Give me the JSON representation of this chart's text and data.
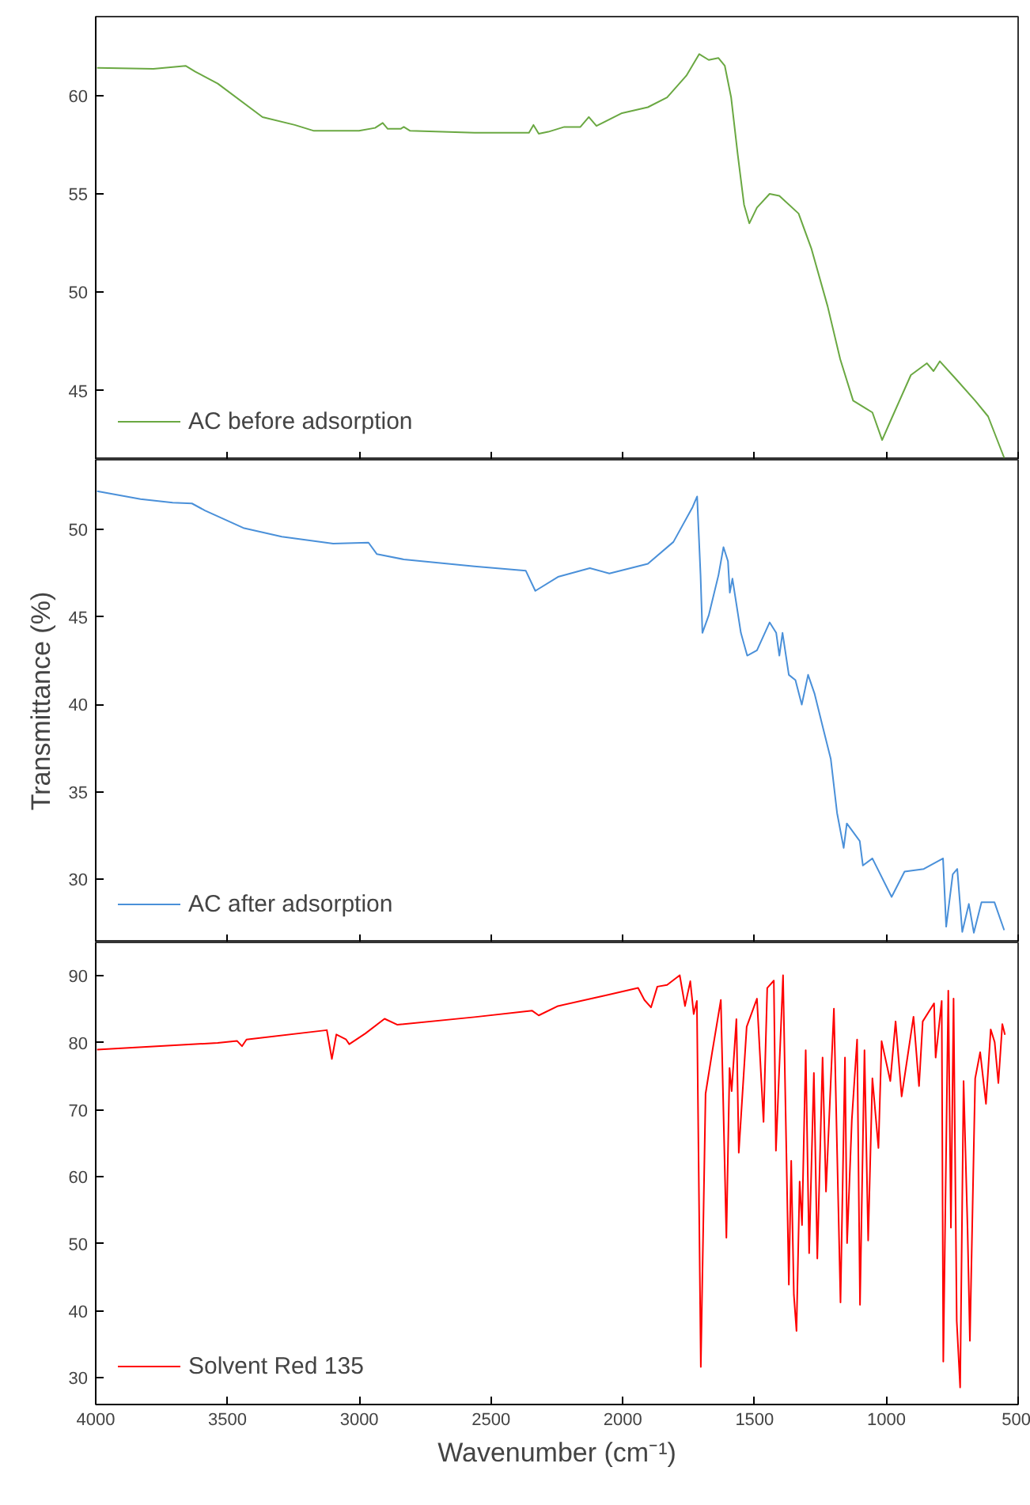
{
  "chart_data": [
    {
      "type": "line",
      "x": [
        3995,
        3781,
        3659,
        3622,
        3537,
        3367,
        3245,
        3172,
        3001,
        2940,
        2911,
        2892,
        2843,
        2831,
        2807,
        2563,
        2356,
        2339,
        2319,
        2283,
        2222,
        2161,
        2129,
        2100,
        2003,
        1905,
        1832,
        1759,
        1710,
        1674,
        1637,
        1613,
        1589,
        1564,
        1540,
        1520,
        1491,
        1443,
        1406,
        1333,
        1284,
        1223,
        1175,
        1126,
        1077,
        1053,
        1016,
        980,
        907,
        846,
        821,
        797,
        736,
        663,
        614,
        553
      ],
      "series": [
        {
          "name": "AC before adsorption",
          "color": "#6aa842",
          "values": [
            61.4,
            61.35,
            61.5,
            61.2,
            60.6,
            58.9,
            58.5,
            58.2,
            58.2,
            58.35,
            58.6,
            58.3,
            58.3,
            58.4,
            58.2,
            58.1,
            58.1,
            58.5,
            58.05,
            58.15,
            58.4,
            58.4,
            58.9,
            58.45,
            59.1,
            59.4,
            59.9,
            61.0,
            62.1,
            61.8,
            61.9,
            61.5,
            59.9,
            57.0,
            54.45,
            53.5,
            54.3,
            55.0,
            54.9,
            54.0,
            52.2,
            49.3,
            46.6,
            44.5,
            44.1,
            43.9,
            42.5,
            43.6,
            45.8,
            46.4,
            46.0,
            46.5,
            45.6,
            44.5,
            43.7,
            41.6
          ]
        }
      ],
      "xlim": [
        4000,
        500
      ],
      "xticks": [
        4000,
        3500,
        3000,
        2500,
        2000,
        1500,
        1000,
        500
      ],
      "ylim": [
        41.5,
        64
      ],
      "yticks": [
        45,
        50,
        55,
        60
      ],
      "tick_labels": "y",
      "legend": "bottom left",
      "grid": false,
      "marker": "none",
      "line_style": "solid"
    },
    {
      "type": "line",
      "x": [
        3995,
        3830,
        3708,
        3635,
        3586,
        3440,
        3294,
        3099,
        2965,
        2933,
        2831,
        2563,
        2368,
        2332,
        2246,
        2125,
        2051,
        1905,
        1808,
        1735,
        1718,
        1705,
        1698,
        1674,
        1637,
        1618,
        1601,
        1594,
        1584,
        1552,
        1528,
        1491,
        1443,
        1418,
        1406,
        1394,
        1370,
        1345,
        1321,
        1297,
        1272,
        1236,
        1211,
        1187,
        1162,
        1150,
        1101,
        1089,
        1053,
        980,
        931,
        858,
        785,
        773,
        748,
        731,
        712,
        687,
        668,
        639,
        590,
        553
      ],
      "series": [
        {
          "name": "AC after adsorption",
          "color": "#4a90d9",
          "values": [
            52.2,
            51.75,
            51.55,
            51.5,
            51.1,
            50.1,
            49.6,
            49.2,
            49.26,
            48.6,
            48.3,
            47.9,
            47.65,
            46.5,
            47.3,
            47.8,
            47.5,
            48.05,
            49.3,
            51.3,
            51.9,
            47.4,
            44.1,
            45.1,
            47.4,
            49.0,
            48.2,
            46.4,
            47.2,
            44.1,
            42.8,
            43.1,
            44.7,
            44.1,
            42.8,
            44.1,
            41.7,
            41.4,
            40.0,
            41.7,
            40.6,
            38.4,
            36.9,
            33.8,
            31.8,
            33.2,
            32.2,
            30.8,
            31.2,
            29.0,
            30.45,
            30.6,
            31.2,
            27.3,
            30.3,
            30.6,
            27.0,
            28.6,
            26.95,
            28.7,
            28.7,
            27.1
          ]
        }
      ],
      "xlim": [
        4000,
        500
      ],
      "xticks": [
        4000,
        3500,
        3000,
        2500,
        2000,
        1500,
        1000,
        500
      ],
      "ylim": [
        26.4,
        54
      ],
      "yticks": [
        30,
        35,
        40,
        45,
        50
      ],
      "ylabel": "Transmittance (%)",
      "tick_labels": "y",
      "legend": "bottom left",
      "grid": false,
      "marker": "none",
      "line_style": "solid"
    },
    {
      "type": "line",
      "x": [
        3995,
        3537,
        3464,
        3445,
        3428,
        3123,
        3104,
        3087,
        3050,
        3038,
        2977,
        2904,
        2855,
        2563,
        2344,
        2319,
        2246,
        2076,
        1942,
        1918,
        1893,
        1869,
        1832,
        1784,
        1764,
        1744,
        1731,
        1719,
        1704,
        1686,
        1661,
        1628,
        1607,
        1595,
        1587,
        1569,
        1560,
        1530,
        1491,
        1466,
        1452,
        1427,
        1419,
        1392,
        1370,
        1361,
        1351,
        1341,
        1329,
        1320,
        1306,
        1293,
        1275,
        1262,
        1242,
        1229,
        1199,
        1174,
        1157,
        1149,
        1131,
        1111,
        1100,
        1083,
        1069,
        1053,
        1030,
        1018,
        985,
        965,
        942,
        897,
        876,
        862,
        819,
        813,
        790,
        784,
        765,
        755,
        745,
        733,
        720,
        707,
        692,
        683,
        663,
        644,
        622,
        604,
        589,
        575,
        560,
        550
      ],
      "series": [
        {
          "name": "Solvent Red 135",
          "color": "#ff0000",
          "values": [
            79.0,
            80.0,
            80.3,
            79.5,
            80.5,
            81.9,
            77.6,
            81.25,
            80.5,
            79.8,
            81.4,
            83.6,
            82.7,
            83.85,
            84.8,
            84.1,
            85.5,
            87.0,
            88.2,
            86.4,
            85.3,
            88.4,
            88.65,
            90.1,
            85.5,
            89.2,
            84.3,
            86.25,
            31.6,
            72.4,
            78.6,
            86.4,
            50.9,
            76.25,
            72.8,
            83.55,
            63.6,
            82.4,
            86.6,
            68.2,
            88.2,
            89.3,
            63.9,
            90.1,
            43.9,
            62.4,
            42.4,
            37.0,
            59.3,
            52.8,
            78.9,
            48.6,
            75.5,
            47.8,
            77.8,
            57.8,
            85.1,
            41.25,
            77.8,
            50.1,
            68.5,
            80.5,
            40.9,
            78.9,
            50.5,
            74.7,
            64.3,
            80.25,
            74.3,
            83.2,
            72.0,
            83.9,
            73.55,
            83.2,
            85.9,
            77.8,
            86.25,
            32.4,
            87.8,
            52.4,
            86.6,
            38.5,
            28.55,
            74.3,
            52.4,
            35.5,
            74.7,
            78.6,
            70.9,
            82.0,
            80.1,
            74.0,
            82.8,
            81.2
          ]
        }
      ],
      "xlim": [
        4000,
        500
      ],
      "xticks": [
        4000,
        3500,
        3000,
        2500,
        2000,
        1500,
        1000,
        500
      ],
      "ylim": [
        26,
        95
      ],
      "yticks": [
        30,
        40,
        50,
        60,
        70,
        80,
        90
      ],
      "xlabel": "Wavenumber (cm⁻¹)",
      "legend": "bottom left",
      "grid": false,
      "marker": "none",
      "line_style": "solid"
    }
  ]
}
